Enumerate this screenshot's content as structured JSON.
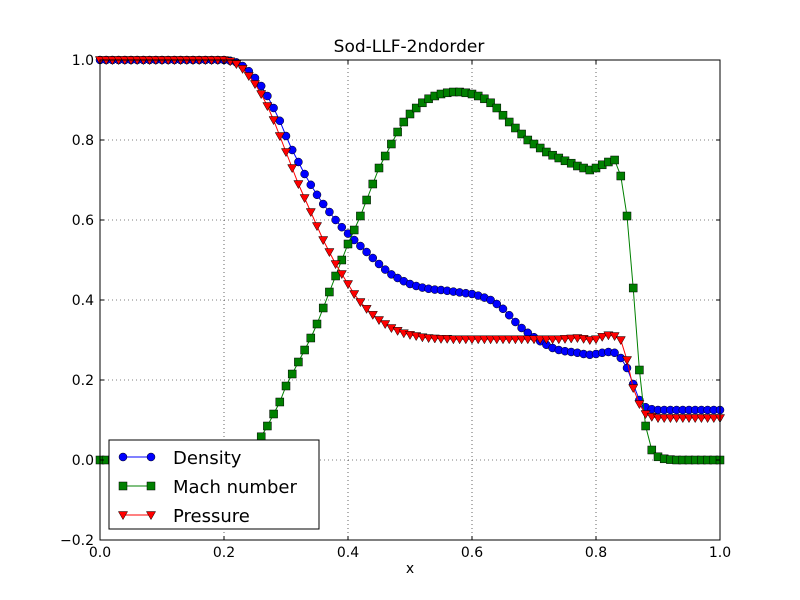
{
  "chart_data": {
    "type": "line",
    "title": "Sod-LLF-2ndorder",
    "xlabel": "x",
    "ylabel": "",
    "xlim": [
      0.0,
      1.0
    ],
    "ylim": [
      -0.2,
      1.0
    ],
    "xticks": [
      0.0,
      0.2,
      0.4,
      0.6,
      0.8,
      1.0
    ],
    "yticks": [
      -0.2,
      0.0,
      0.2,
      0.4,
      0.6,
      0.8,
      1.0
    ],
    "xtick_labels": [
      "0.0",
      "0.2",
      "0.4",
      "0.6",
      "0.8",
      "1.0"
    ],
    "ytick_labels": [
      "−0.2",
      "0.0",
      "0.2",
      "0.4",
      "0.6",
      "0.8",
      "1.0"
    ],
    "grid": true,
    "legend_position": "lower-left",
    "x": [
      0.0,
      0.01,
      0.02,
      0.03,
      0.04,
      0.05,
      0.06,
      0.07,
      0.08,
      0.09,
      0.1,
      0.11,
      0.12,
      0.13,
      0.14,
      0.15,
      0.16,
      0.17,
      0.18,
      0.19,
      0.2,
      0.21,
      0.22,
      0.23,
      0.24,
      0.25,
      0.26,
      0.27,
      0.28,
      0.29,
      0.3,
      0.31,
      0.32,
      0.33,
      0.34,
      0.35,
      0.36,
      0.37,
      0.38,
      0.39,
      0.4,
      0.41,
      0.42,
      0.43,
      0.44,
      0.45,
      0.46,
      0.47,
      0.48,
      0.49,
      0.5,
      0.51,
      0.52,
      0.53,
      0.54,
      0.55,
      0.56,
      0.57,
      0.58,
      0.59,
      0.6,
      0.61,
      0.62,
      0.63,
      0.64,
      0.65,
      0.66,
      0.67,
      0.68,
      0.69,
      0.7,
      0.71,
      0.72,
      0.73,
      0.74,
      0.75,
      0.76,
      0.77,
      0.78,
      0.79,
      0.8,
      0.81,
      0.82,
      0.83,
      0.84,
      0.85,
      0.86,
      0.87,
      0.88,
      0.89,
      0.9,
      0.91,
      0.92,
      0.93,
      0.94,
      0.95,
      0.96,
      0.97,
      0.98,
      0.99,
      1.0
    ],
    "series": [
      {
        "name": "Density",
        "color": "#0000ff",
        "marker": "circle",
        "values": [
          1.0,
          1.0,
          1.0,
          1.0,
          1.0,
          1.0,
          1.0,
          1.0,
          1.0,
          1.0,
          1.0,
          1.0,
          1.0,
          1.0,
          1.0,
          1.0,
          1.0,
          1.0,
          1.0,
          1.0,
          1.0,
          0.998,
          0.994,
          0.985,
          0.972,
          0.955,
          0.935,
          0.91,
          0.88,
          0.848,
          0.81,
          0.775,
          0.745,
          0.715,
          0.688,
          0.663,
          0.64,
          0.62,
          0.6,
          0.582,
          0.566,
          0.55,
          0.535,
          0.52,
          0.505,
          0.49,
          0.476,
          0.464,
          0.455,
          0.447,
          0.44,
          0.435,
          0.431,
          0.428,
          0.426,
          0.425,
          0.423,
          0.421,
          0.419,
          0.417,
          0.415,
          0.411,
          0.406,
          0.4,
          0.39,
          0.378,
          0.362,
          0.345,
          0.33,
          0.318,
          0.307,
          0.297,
          0.288,
          0.28,
          0.275,
          0.272,
          0.27,
          0.268,
          0.265,
          0.263,
          0.265,
          0.268,
          0.27,
          0.268,
          0.255,
          0.23,
          0.19,
          0.15,
          0.132,
          0.127,
          0.125,
          0.125,
          0.125,
          0.125,
          0.125,
          0.125,
          0.125,
          0.125,
          0.125,
          0.125,
          0.125
        ]
      },
      {
        "name": "Mach number",
        "color": "#008000",
        "marker": "square",
        "values": [
          0.0,
          0.0,
          0.0,
          0.0,
          0.0,
          0.0,
          0.0,
          0.0,
          0.0,
          0.0,
          0.0,
          0.0,
          0.0,
          0.0,
          0.0,
          0.0,
          0.0,
          0.0,
          0.0,
          0.0,
          0.0,
          0.002,
          0.005,
          0.012,
          0.022,
          0.035,
          0.058,
          0.085,
          0.115,
          0.145,
          0.185,
          0.215,
          0.245,
          0.275,
          0.305,
          0.34,
          0.38,
          0.42,
          0.46,
          0.5,
          0.54,
          0.575,
          0.61,
          0.65,
          0.69,
          0.73,
          0.76,
          0.79,
          0.82,
          0.845,
          0.865,
          0.88,
          0.893,
          0.903,
          0.91,
          0.915,
          0.918,
          0.92,
          0.92,
          0.918,
          0.915,
          0.91,
          0.903,
          0.893,
          0.88,
          0.862,
          0.845,
          0.83,
          0.815,
          0.8,
          0.79,
          0.78,
          0.77,
          0.762,
          0.755,
          0.748,
          0.742,
          0.735,
          0.73,
          0.725,
          0.73,
          0.738,
          0.745,
          0.75,
          0.71,
          0.61,
          0.43,
          0.225,
          0.085,
          0.025,
          0.008,
          0.003,
          0.001,
          0.0,
          0.0,
          0.0,
          0.0,
          0.0,
          0.0,
          0.0,
          0.0
        ]
      },
      {
        "name": "Pressure",
        "color": "#ff0000",
        "marker": "triangle-down",
        "values": [
          1.0,
          1.0,
          1.0,
          1.0,
          1.0,
          1.0,
          1.0,
          1.0,
          1.0,
          1.0,
          1.0,
          1.0,
          1.0,
          1.0,
          1.0,
          1.0,
          1.0,
          1.0,
          1.0,
          1.0,
          1.0,
          0.997,
          0.99,
          0.978,
          0.96,
          0.94,
          0.915,
          0.885,
          0.85,
          0.81,
          0.77,
          0.73,
          0.69,
          0.655,
          0.62,
          0.585,
          0.55,
          0.52,
          0.49,
          0.465,
          0.44,
          0.415,
          0.395,
          0.378,
          0.363,
          0.35,
          0.34,
          0.33,
          0.323,
          0.317,
          0.313,
          0.31,
          0.307,
          0.305,
          0.304,
          0.303,
          0.303,
          0.302,
          0.302,
          0.302,
          0.302,
          0.302,
          0.302,
          0.302,
          0.302,
          0.302,
          0.302,
          0.302,
          0.302,
          0.302,
          0.302,
          0.302,
          0.302,
          0.302,
          0.302,
          0.303,
          0.304,
          0.305,
          0.303,
          0.3,
          0.302,
          0.308,
          0.312,
          0.31,
          0.3,
          0.25,
          0.18,
          0.14,
          0.115,
          0.108,
          0.105,
          0.105,
          0.105,
          0.105,
          0.105,
          0.105,
          0.105,
          0.105,
          0.105,
          0.105,
          0.105
        ]
      }
    ]
  }
}
